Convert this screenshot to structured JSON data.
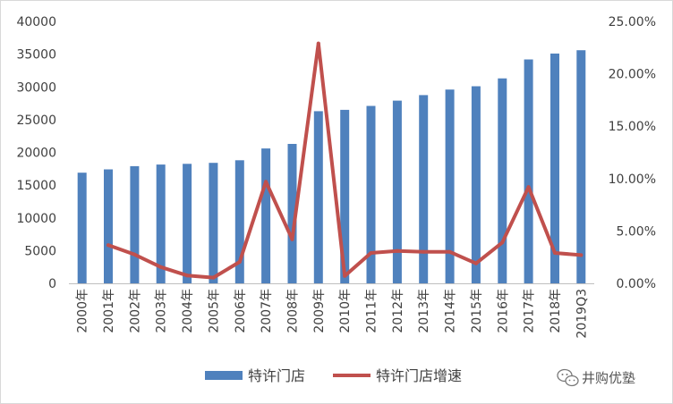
{
  "chart_data": {
    "type": "bar",
    "categories": [
      "2000年",
      "2001年",
      "2002年",
      "2003年",
      "2004年",
      "2005年",
      "2006年",
      "2007年",
      "2008年",
      "2009年",
      "2010年",
      "2011年",
      "2012年",
      "2013年",
      "2014年",
      "2015年",
      "2016年",
      "2017年",
      "2018年",
      "2019Q3"
    ],
    "series": [
      {
        "name": "特许门店",
        "type": "bar",
        "axis": "left",
        "color": "#4F81BD",
        "values": [
          16900,
          17400,
          17900,
          18150,
          18250,
          18400,
          18800,
          20600,
          21300,
          26300,
          26500,
          27100,
          27900,
          28750,
          29600,
          30100,
          31300,
          34200,
          35100,
          35600
        ]
      },
      {
        "name": "特许门店增速",
        "type": "line",
        "axis": "right",
        "color": "#C0504D",
        "values": [
          null,
          0.0365,
          0.0275,
          0.0155,
          0.0075,
          0.0055,
          0.0205,
          0.097,
          0.042,
          0.229,
          0.007,
          0.029,
          0.031,
          0.03,
          0.03,
          0.019,
          0.039,
          0.092,
          0.029,
          0.027
        ]
      }
    ],
    "y_left": {
      "min": 0,
      "max": 40000,
      "ticks": [
        0,
        5000,
        10000,
        15000,
        20000,
        25000,
        30000,
        35000,
        40000
      ],
      "tick_labels": [
        "0",
        "5000",
        "10000",
        "15000",
        "20000",
        "25000",
        "30000",
        "35000",
        "40000"
      ]
    },
    "y_right": {
      "min": 0,
      "max": 0.25,
      "ticks": [
        0,
        0.05,
        0.1,
        0.15,
        0.2,
        0.25
      ],
      "tick_labels": [
        "0.00%",
        "5.00%",
        "10.00%",
        "15.00%",
        "20.00%",
        "25.00%"
      ]
    },
    "grid": false,
    "legend_position": "bottom-center",
    "x_label_rotation": "vertical"
  },
  "watermark": {
    "icon": "wechat-icon",
    "text": "井购优塾"
  }
}
